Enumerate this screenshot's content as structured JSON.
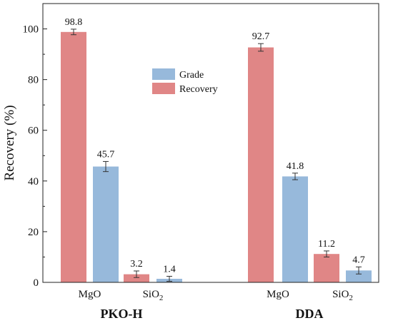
{
  "chart_data": {
    "type": "bar",
    "ylabel": "Recovery (%)",
    "ylim": [
      0,
      110
    ],
    "yticks": [
      0,
      20,
      40,
      60,
      80,
      100
    ],
    "colors": {
      "Grade": "#97b9db",
      "Recovery": "#e08686"
    },
    "legend": {
      "position": "upper-middle",
      "entries": [
        "Grade",
        "Recovery"
      ]
    },
    "groups": [
      {
        "name": "PKO-H",
        "bars": [
          {
            "series": "Recovery",
            "category": "MgO",
            "value": 98.8,
            "error": 1.1,
            "label": "98.8"
          },
          {
            "series": "Grade",
            "category": "MgO",
            "value": 45.7,
            "error": 2.0,
            "label": "45.7"
          },
          {
            "series": "Recovery",
            "category": "SiO2",
            "value": 3.2,
            "error": 1.3,
            "label": "3.2"
          },
          {
            "series": "Grade",
            "category": "SiO2",
            "value": 1.4,
            "error": 1.0,
            "label": "1.4"
          }
        ],
        "category_labels": [
          "MgO",
          "SiO2"
        ]
      },
      {
        "name": "DDA",
        "bars": [
          {
            "series": "Recovery",
            "category": "MgO",
            "value": 92.7,
            "error": 1.5,
            "label": "92.7"
          },
          {
            "series": "Grade",
            "category": "MgO",
            "value": 41.8,
            "error": 1.3,
            "label": "41.8"
          },
          {
            "series": "Recovery",
            "category": "SiO2",
            "value": 11.2,
            "error": 1.2,
            "label": "11.2"
          },
          {
            "series": "Grade",
            "category": "SiO2",
            "value": 4.7,
            "error": 1.4,
            "label": "4.7"
          }
        ],
        "category_labels": [
          "MgO",
          "SiO2"
        ]
      }
    ]
  }
}
